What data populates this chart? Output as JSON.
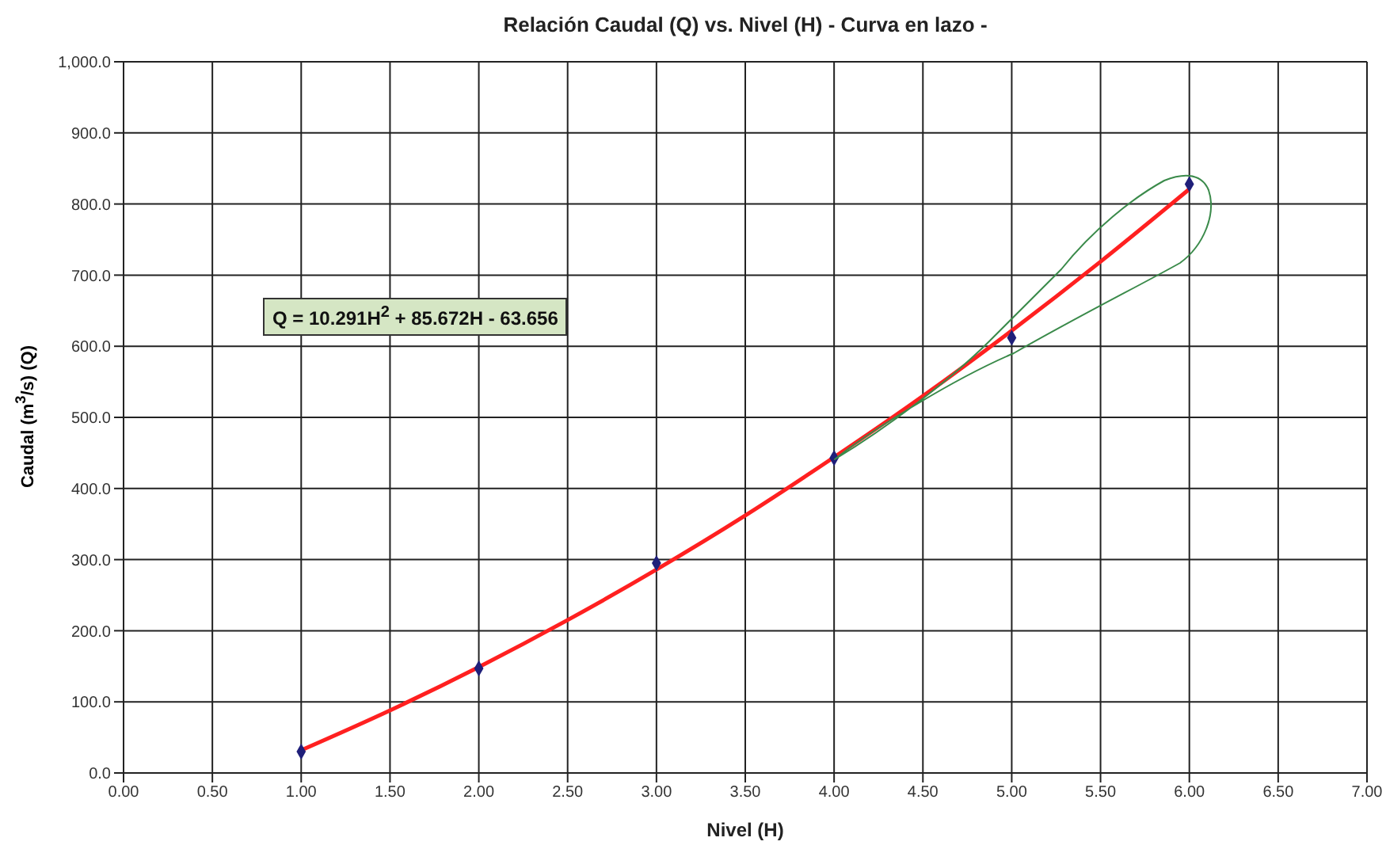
{
  "chart_data": {
    "type": "scatter",
    "title": "Relación Caudal (Q) vs. Nivel (H)  - Curva en lazo -",
    "xlabel": "Nivel (H)",
    "ylabel": "Caudal (m$^{3}$/s) (Q)",
    "annotations": [
      "Q = 10.291H$^{2}$ + 85.672H - 63.656"
    ],
    "series": [
      {
        "type": "line",
        "color": "#ff2020",
        "x": [
          1,
          1.5,
          2,
          2.5,
          3,
          3.5,
          4,
          4.5,
          5,
          5.5,
          6
        ],
        "values": [
          32,
          88,
          149,
          215,
          286,
          362,
          444,
          530,
          622,
          719,
          821
        ]
      },
      {
        "color": "#1f1f7a",
        "marker": "diamond",
        "x": [
          1,
          2,
          3,
          4,
          5,
          6
        ],
        "values": [
          30,
          147,
          295,
          443,
          612,
          828
        ]
      }
    ],
    "xlim": [
      0,
      7
    ],
    "ylim": [
      0,
      1000
    ],
    "xticks": [
      {
        "value": 0,
        "label": "0.00"
      },
      {
        "value": 0.5,
        "label": "0.50"
      },
      {
        "value": 1,
        "label": "1.00"
      },
      {
        "value": 1.5,
        "label": "1.50"
      },
      {
        "value": 2,
        "label": "2.00"
      },
      {
        "value": 2.5,
        "label": "2.50"
      },
      {
        "value": 3,
        "label": "3.00"
      },
      {
        "value": 3.5,
        "label": "3.50"
      },
      {
        "value": 4,
        "label": "4.00"
      },
      {
        "value": 4.5,
        "label": "4.50"
      },
      {
        "value": 5,
        "label": "5.00"
      },
      {
        "value": 5.5,
        "label": "5.50"
      },
      {
        "value": 6,
        "label": "6.00"
      },
      {
        "value": 6.5,
        "label": "6.50"
      },
      {
        "value": 7,
        "label": "7.00"
      }
    ],
    "yticks": [
      {
        "value": 0,
        "label": "0.0"
      },
      {
        "value": 100,
        "label": "100.0"
      },
      {
        "value": 200,
        "label": "200.0"
      },
      {
        "value": 300,
        "label": "300.0"
      },
      {
        "value": 400,
        "label": "400.0"
      },
      {
        "value": 500,
        "label": "500.0"
      },
      {
        "value": 600,
        "label": "600.0"
      },
      {
        "value": 700,
        "label": "700.0"
      },
      {
        "value": 800,
        "label": "800.0"
      },
      {
        "value": 900,
        "label": "900.0"
      },
      {
        "value": 1000,
        "label": "1,000.0"
      }
    ],
    "grid": true,
    "line_style": "solid"
  }
}
